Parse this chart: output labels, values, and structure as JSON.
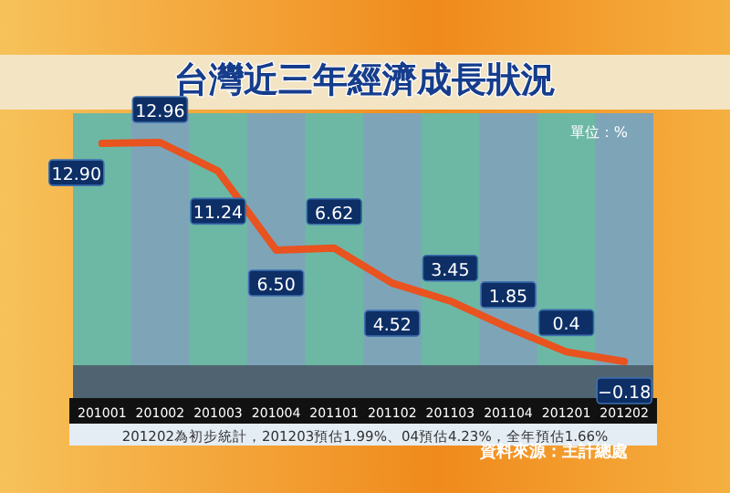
{
  "chart_data": {
    "type": "line",
    "title": "台灣近三年經濟成長狀況",
    "categories": [
      "201001",
      "201002",
      "201003",
      "201004",
      "201101",
      "201102",
      "201103",
      "201104",
      "201201",
      "201202"
    ],
    "values": [
      12.9,
      12.96,
      11.24,
      6.5,
      6.62,
      4.52,
      3.45,
      1.85,
      0.4,
      -0.18
    ],
    "color": "#e8531f",
    "value_labels": [
      "12.90",
      "12.96",
      "11.24",
      "6.50",
      "6.62",
      "4.52",
      "3.45",
      "1.85",
      "0.4",
      "−0.18"
    ],
    "annotations": [
      "單位：%",
      "201202為初步統計，201203預估1.99%、04預估4.23%，全年預估1.66%",
      "資料來源：主計總處"
    ]
  }
}
